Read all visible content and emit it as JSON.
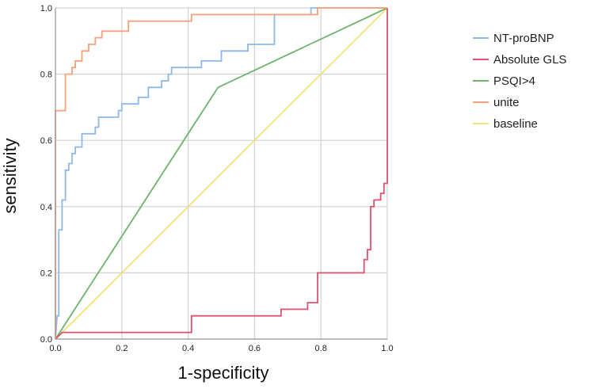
{
  "chart_data": {
    "type": "line",
    "xlabel": "1-specificity",
    "ylabel": "sensitivity",
    "xlim": [
      0,
      1
    ],
    "ylim": [
      0,
      1
    ],
    "xticks": [
      "0.0",
      "0.2",
      "0.4",
      "0.6",
      "0.8",
      "1.0"
    ],
    "yticks": [
      "0.0",
      "0.2",
      "0.4",
      "0.6",
      "0.8",
      "1.0"
    ],
    "grid": true,
    "legend_position": "right",
    "series": [
      {
        "name": "NT-proBNP",
        "color": "#8fb8ea",
        "points": [
          [
            0,
            0
          ],
          [
            0.005,
            0.07
          ],
          [
            0.01,
            0.07
          ],
          [
            0.01,
            0.33
          ],
          [
            0.02,
            0.33
          ],
          [
            0.02,
            0.42
          ],
          [
            0.03,
            0.42
          ],
          [
            0.03,
            0.51
          ],
          [
            0.04,
            0.51
          ],
          [
            0.04,
            0.53
          ],
          [
            0.05,
            0.53
          ],
          [
            0.05,
            0.56
          ],
          [
            0.06,
            0.56
          ],
          [
            0.06,
            0.58
          ],
          [
            0.08,
            0.58
          ],
          [
            0.08,
            0.62
          ],
          [
            0.12,
            0.62
          ],
          [
            0.12,
            0.64
          ],
          [
            0.13,
            0.64
          ],
          [
            0.13,
            0.67
          ],
          [
            0.19,
            0.67
          ],
          [
            0.19,
            0.69
          ],
          [
            0.2,
            0.69
          ],
          [
            0.2,
            0.71
          ],
          [
            0.25,
            0.71
          ],
          [
            0.25,
            0.73
          ],
          [
            0.28,
            0.73
          ],
          [
            0.28,
            0.76
          ],
          [
            0.32,
            0.76
          ],
          [
            0.32,
            0.78
          ],
          [
            0.34,
            0.78
          ],
          [
            0.34,
            0.8
          ],
          [
            0.35,
            0.8
          ],
          [
            0.35,
            0.82
          ],
          [
            0.44,
            0.82
          ],
          [
            0.44,
            0.84
          ],
          [
            0.5,
            0.84
          ],
          [
            0.5,
            0.87
          ],
          [
            0.58,
            0.87
          ],
          [
            0.58,
            0.89
          ],
          [
            0.66,
            0.89
          ],
          [
            0.66,
            0.98
          ],
          [
            0.77,
            0.98
          ],
          [
            0.77,
            1
          ],
          [
            1,
            1
          ]
        ]
      },
      {
        "name": "Absolute GLS",
        "color": "#e0516f",
        "points": [
          [
            0,
            0
          ],
          [
            0.02,
            0.02
          ],
          [
            0.41,
            0.02
          ],
          [
            0.41,
            0.07
          ],
          [
            0.68,
            0.07
          ],
          [
            0.68,
            0.09
          ],
          [
            0.76,
            0.09
          ],
          [
            0.76,
            0.11
          ],
          [
            0.79,
            0.11
          ],
          [
            0.79,
            0.2
          ],
          [
            0.93,
            0.2
          ],
          [
            0.93,
            0.24
          ],
          [
            0.94,
            0.24
          ],
          [
            0.94,
            0.27
          ],
          [
            0.95,
            0.27
          ],
          [
            0.95,
            0.4
          ],
          [
            0.96,
            0.4
          ],
          [
            0.96,
            0.42
          ],
          [
            0.98,
            0.42
          ],
          [
            0.98,
            0.44
          ],
          [
            0.99,
            0.44
          ],
          [
            0.99,
            0.47
          ],
          [
            1,
            0.47
          ],
          [
            1,
            1
          ]
        ]
      },
      {
        "name": "PSQI>4",
        "color": "#6db36d",
        "points": [
          [
            0,
            0
          ],
          [
            0.49,
            0.76
          ],
          [
            1,
            1
          ]
        ]
      },
      {
        "name": "unite",
        "color": "#f5a17a",
        "points": [
          [
            0,
            0
          ],
          [
            0,
            0.69
          ],
          [
            0.03,
            0.69
          ],
          [
            0.03,
            0.8
          ],
          [
            0.05,
            0.8
          ],
          [
            0.05,
            0.82
          ],
          [
            0.06,
            0.82
          ],
          [
            0.06,
            0.84
          ],
          [
            0.08,
            0.84
          ],
          [
            0.08,
            0.87
          ],
          [
            0.1,
            0.87
          ],
          [
            0.1,
            0.89
          ],
          [
            0.12,
            0.89
          ],
          [
            0.12,
            0.91
          ],
          [
            0.14,
            0.91
          ],
          [
            0.14,
            0.93
          ],
          [
            0.22,
            0.93
          ],
          [
            0.22,
            0.96
          ],
          [
            0.41,
            0.96
          ],
          [
            0.41,
            0.98
          ],
          [
            0.79,
            0.98
          ],
          [
            0.79,
            1
          ],
          [
            1,
            1
          ]
        ]
      },
      {
        "name": "baseline",
        "color": "#ede37a",
        "points": [
          [
            0,
            0
          ],
          [
            1,
            1
          ]
        ]
      }
    ]
  }
}
